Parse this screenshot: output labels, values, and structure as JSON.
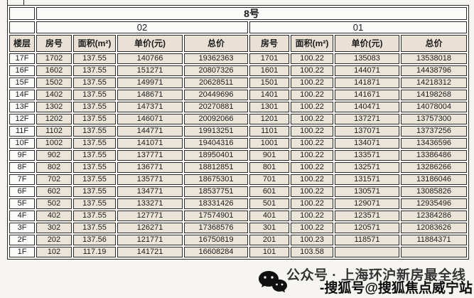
{
  "table": {
    "building": "8号",
    "units": [
      "02",
      "01"
    ],
    "headers": [
      "楼层",
      "房号",
      "面积(m²)",
      "单价(元)",
      "总价",
      "房号",
      "面积(m²)",
      "单价(元)",
      "总价"
    ],
    "rows": [
      [
        "17F",
        "1702",
        "137.55",
        "140766",
        "19362363",
        "1701",
        "100.22",
        "135083",
        "13538018"
      ],
      [
        "16F",
        "1602",
        "137.55",
        "151271",
        "20807326",
        "1601",
        "100.22",
        "144071",
        "14438796"
      ],
      [
        "15F",
        "1502",
        "137.55",
        "149971",
        "20628511",
        "1501",
        "100.22",
        "141871",
        "14218312"
      ],
      [
        "14F",
        "1402",
        "137.55",
        "148671",
        "20449696",
        "1401",
        "100.22",
        "141671",
        "14198268"
      ],
      [
        "13F",
        "1302",
        "137.55",
        "147371",
        "20270881",
        "1301",
        "100.22",
        "140471",
        "14078004"
      ],
      [
        "12F",
        "1202",
        "137.55",
        "146071",
        "20092066",
        "1201",
        "100.22",
        "137271",
        "13757300"
      ],
      [
        "11F",
        "1102",
        "137.55",
        "144771",
        "19913251",
        "1101",
        "100.22",
        "137071",
        "13737256"
      ],
      [
        "10F",
        "1002",
        "137.55",
        "141071",
        "19404316",
        "1001",
        "100.22",
        "134071",
        "13436596"
      ],
      [
        "9F",
        "902",
        "137.55",
        "137771",
        "18950401",
        "901",
        "100.22",
        "133571",
        "13386486"
      ],
      [
        "8F",
        "802",
        "137.55",
        "136771",
        "18812851",
        "801",
        "100.22",
        "132571",
        "13286266"
      ],
      [
        "7F",
        "702",
        "137.55",
        "135771",
        "18675301",
        "701",
        "100.22",
        "131571",
        "13186046"
      ],
      [
        "6F",
        "602",
        "137.55",
        "134771",
        "18537751",
        "601",
        "100.22",
        "130571",
        "13085826"
      ],
      [
        "5F",
        "502",
        "137.55",
        "133271",
        "18331426",
        "501",
        "100.22",
        "129071",
        "12935496"
      ],
      [
        "4F",
        "402",
        "137.55",
        "127771",
        "17574901",
        "401",
        "100.22",
        "123571",
        "12384286"
      ],
      [
        "3F",
        "302",
        "137.55",
        "126271",
        "17368576",
        "301",
        "100.22",
        "120571",
        "12083626"
      ],
      [
        "2F",
        "202",
        "137.56",
        "121771",
        "16750819",
        "201",
        "100.23",
        "118571",
        "11884371"
      ],
      [
        "1F",
        "102",
        "117.19",
        "141721",
        "16608284",
        "101",
        "103.58",
        "",
        ""
      ]
    ]
  },
  "watermark": {
    "line1": "公众号 · 上海环沪新房最全线",
    "line2": "-搜狐号@搜狐焦点威宁站",
    "icon": "wechat-icon",
    "icon_color": "#101010"
  },
  "colors": {
    "cell_beige": "#ebe4d9",
    "cell_white": "#fafaf9",
    "grid_line": "#2a2a2a",
    "page_bg": "#f6f5f2"
  }
}
